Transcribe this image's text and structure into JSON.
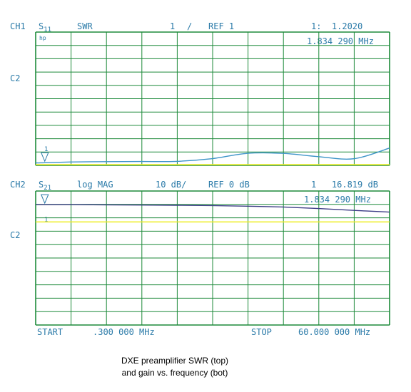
{
  "colors": {
    "label": "#2a7aa8",
    "grid": "#1d8a3a",
    "trace_ch1": "#3d94c8",
    "trace_ch2": "#3c3c86",
    "ref_line": "#eeee22"
  },
  "ch1": {
    "channel": "CH1",
    "param_main": "S",
    "param_sub": "11",
    "format": "SWR",
    "scale": "1",
    "scale_unit": "/",
    "reference": "REF 1",
    "marker_readout": "1:  1.2020",
    "marker_freq": "1.834 290 MHz",
    "marker_number": "1",
    "side_label": "C2",
    "hp_logo": "hp"
  },
  "ch2": {
    "channel": "CH2",
    "param_main": "S",
    "param_sub": "21",
    "format": "log MAG",
    "scale": "10 dB/",
    "reference": "REF 0 dB",
    "marker_readout": "1   16.819 dB",
    "marker_freq": "1.834 290 MHz",
    "marker_number": "1",
    "side_label": "C2"
  },
  "sweep": {
    "start_label": "START",
    "start_value": ".300 000 MHz",
    "stop_label": "STOP",
    "stop_value": "60.000 000 MHz"
  },
  "caption": {
    "line1": "DXE preamplifier SWR (top)",
    "line2": "and gain vs. frequency (bot)"
  },
  "chart_data": [
    {
      "type": "line",
      "title": "",
      "x": [
        0.3,
        1.834,
        6,
        12,
        18,
        24,
        30,
        36,
        42,
        48,
        54,
        60
      ],
      "series": [
        {
          "values": [
            1.18,
            1.2,
            1.25,
            1.28,
            1.29,
            1.3,
            1.5,
            1.9,
            1.9,
            1.65,
            1.5,
            2.3
          ]
        }
      ],
      "xlim": [
        0.3,
        60
      ],
      "ylim": [
        1,
        11
      ],
      "grid": true
    },
    {
      "type": "line",
      "title": "",
      "x": [
        0.3,
        1.834,
        6,
        12,
        18,
        24,
        30,
        36,
        42,
        48,
        54,
        60
      ],
      "series": [
        {
          "values": [
            16.8,
            16.8,
            16.8,
            16.6,
            16.4,
            16.2,
            15.9,
            15.3,
            14.5,
            13.0,
            11.2,
            9.5
          ]
        }
      ],
      "xlim": [
        0.3,
        60
      ],
      "ylim": [
        -100,
        30
      ],
      "grid": true
    }
  ]
}
